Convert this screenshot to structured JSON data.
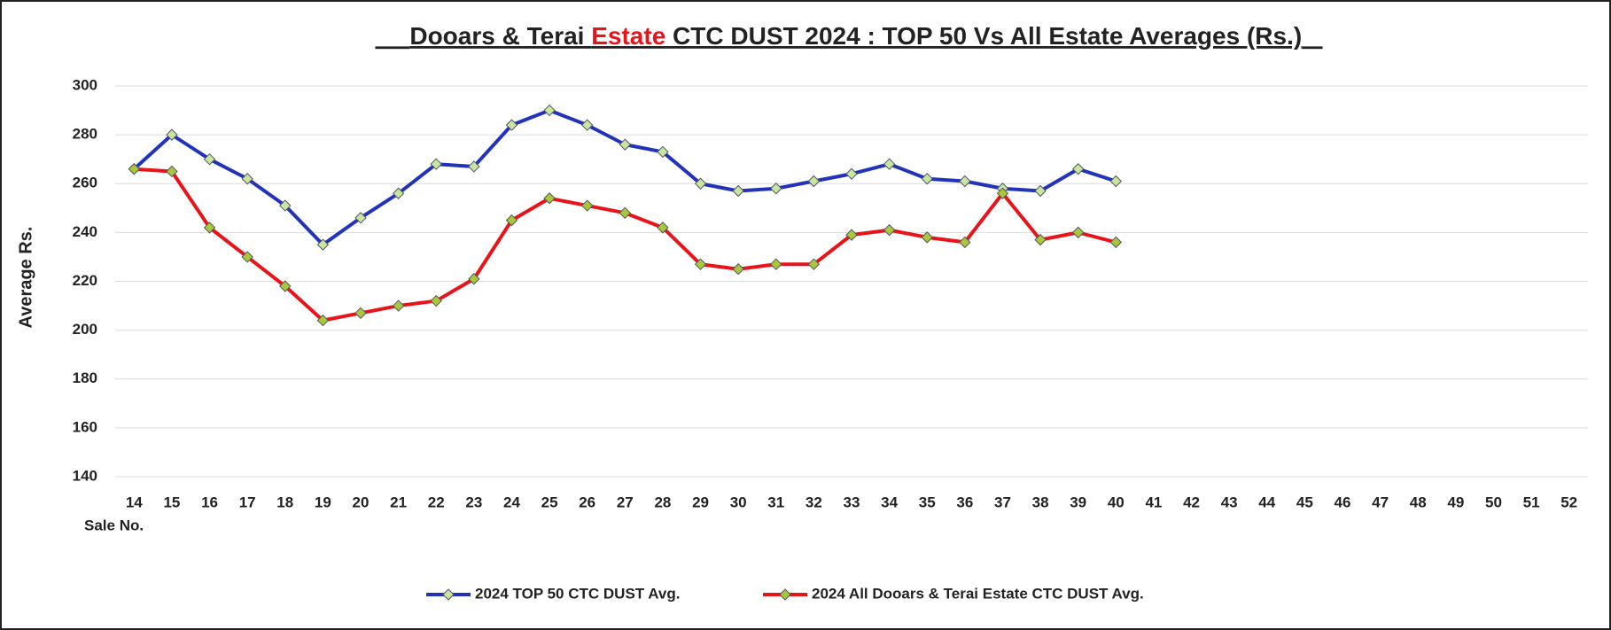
{
  "chart_data": {
    "type": "line",
    "title": [
      {
        "text": "Dooars & Terai "
      },
      {
        "text": "Estate",
        "color": "#e8141a"
      },
      {
        "text": " CTC DUST 2024 : TOP 50 Vs All Estate Averages (Rs.)"
      }
    ],
    "y_label": "Average Rs.",
    "x_label": "Sale No.",
    "categories": [
      "14",
      "15",
      "16",
      "17",
      "18",
      "19",
      "20",
      "21",
      "22",
      "23",
      "24",
      "25",
      "26",
      "27",
      "28",
      "29",
      "30",
      "31",
      "32",
      "33",
      "34",
      "35",
      "36",
      "37",
      "38",
      "39",
      "40",
      "41",
      "42",
      "43",
      "44",
      "45",
      "46",
      "47",
      "48",
      "49",
      "50",
      "51",
      "52"
    ],
    "series": [
      {
        "name": "2024 TOP 50 CTC DUST Avg.",
        "color": "#2233bb",
        "marker_color": "#c8e6a0",
        "values": [
          266,
          280,
          270,
          262,
          251,
          235,
          246,
          256,
          268,
          267,
          284,
          290,
          284,
          276,
          273,
          260,
          257,
          258,
          261,
          264,
          268,
          262,
          261,
          258,
          257,
          266,
          261,
          null,
          null,
          null,
          null,
          null,
          null,
          null,
          null,
          null,
          null,
          null,
          null
        ]
      },
      {
        "name": "2024 All Dooars & Terai Estate CTC DUST Avg.",
        "color": "#e8141a",
        "marker_color": "#a8c83a",
        "values": [
          266,
          265,
          242,
          230,
          218,
          204,
          207,
          210,
          212,
          221,
          245,
          254,
          251,
          248,
          242,
          227,
          225,
          227,
          227,
          239,
          241,
          238,
          236,
          256,
          237,
          240,
          236,
          null,
          null,
          null,
          null,
          null,
          null,
          null,
          null,
          null,
          null,
          null,
          null
        ]
      }
    ],
    "ylim": [
      140,
      300
    ],
    "yticks": [
      140,
      160,
      180,
      200,
      220,
      240,
      260,
      280,
      300
    ],
    "grid": true,
    "legend": "bottom"
  }
}
